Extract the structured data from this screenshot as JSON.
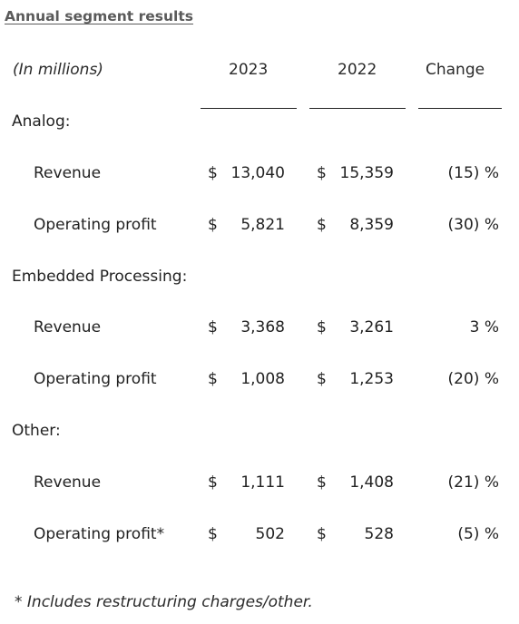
{
  "title": "Annual segment results",
  "header": {
    "units": "(In millions)",
    "col_2023": "2023",
    "col_2022": "2022",
    "col_change": "Change"
  },
  "currency_symbol": "$",
  "segments": [
    {
      "name": "Analog:",
      "rows": [
        {
          "label": "Revenue",
          "v2023": "13,040",
          "v2022": "15,359",
          "change": "(15) %"
        },
        {
          "label": "Operating profit",
          "v2023": "5,821",
          "v2022": "8,359",
          "change": "(30) %"
        }
      ]
    },
    {
      "name": "Embedded Processing:",
      "rows": [
        {
          "label": "Revenue",
          "v2023": "3,368",
          "v2022": "3,261",
          "change": "3 %"
        },
        {
          "label": "Operating profit",
          "v2023": "1,008",
          "v2022": "1,253",
          "change": "(20) %"
        }
      ]
    },
    {
      "name": "Other:",
      "rows": [
        {
          "label": "Revenue",
          "v2023": "1,111",
          "v2022": "1,408",
          "change": "(21) %"
        },
        {
          "label": "Operating profit*",
          "v2023": "502",
          "v2022": "528",
          "change": "(5) %"
        }
      ]
    }
  ],
  "footnote": "* Includes restructuring charges/other."
}
